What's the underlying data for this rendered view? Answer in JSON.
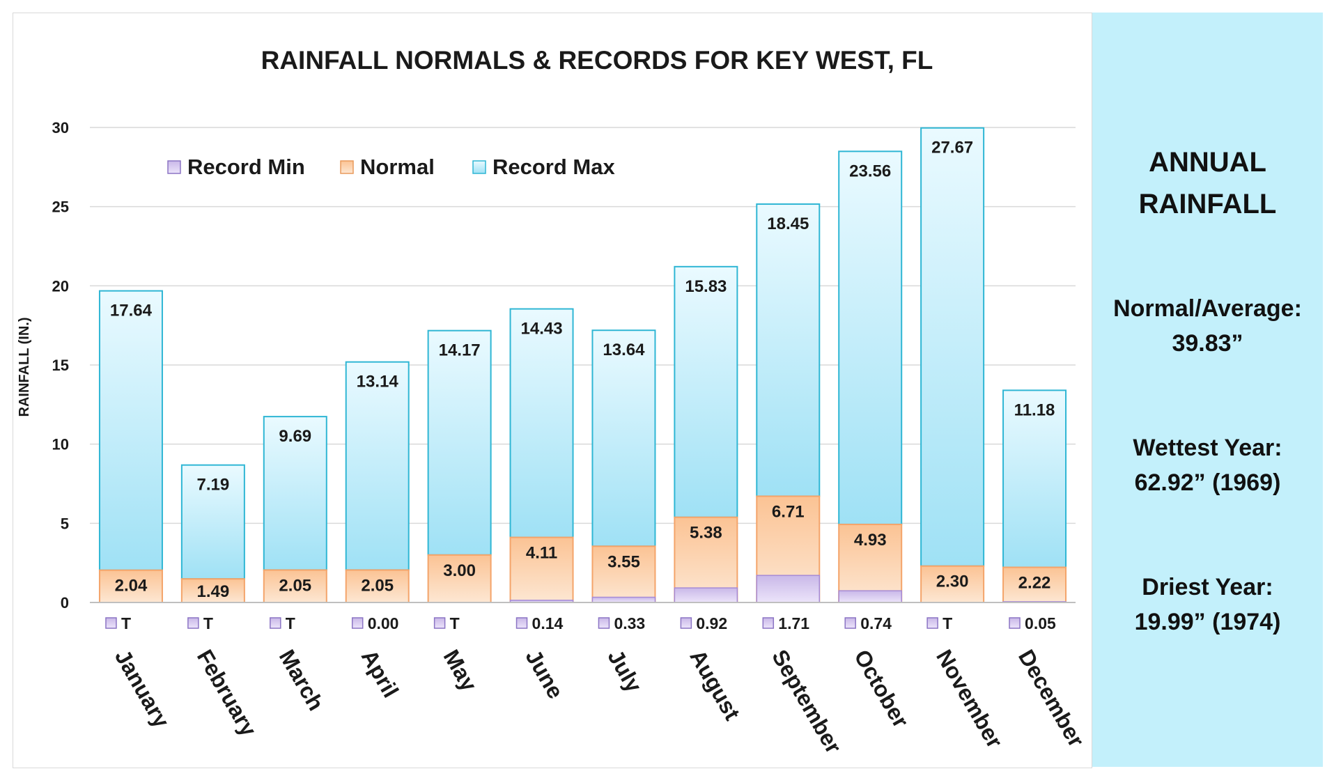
{
  "chart_data": {
    "type": "bar",
    "title": "RAINFALL NORMALS & RECORDS FOR KEY WEST, FL",
    "ylabel": "RAINFALL (IN.)",
    "ylim": [
      0,
      30
    ],
    "yticks": [
      "0",
      "5",
      "10",
      "15",
      "20",
      "25",
      "30"
    ],
    "grid": true,
    "legend_position": "top-left",
    "categories": [
      "January",
      "February",
      "March",
      "April",
      "May",
      "June",
      "July",
      "August",
      "September",
      "October",
      "November",
      "December"
    ],
    "series": [
      {
        "name": "Record Min",
        "color": "#cdbdea",
        "values": [
          0,
          0,
          0,
          0.0,
          0,
          0.14,
          0.33,
          0.92,
          1.71,
          0.74,
          0,
          0.05
        ],
        "labels": [
          "T",
          "T",
          "T",
          "0.00",
          "T",
          "0.14",
          "0.33",
          "0.92",
          "1.71",
          "0.74",
          "T",
          "0.05"
        ]
      },
      {
        "name": "Normal",
        "color": "#fbc89a",
        "values": [
          2.04,
          1.49,
          2.05,
          2.05,
          3.0,
          4.11,
          3.55,
          5.38,
          6.71,
          4.93,
          2.3,
          2.22
        ],
        "labels": [
          "2.04",
          "1.49",
          "2.05",
          "2.05",
          "3.00",
          "4.11",
          "3.55",
          "5.38",
          "6.71",
          "4.93",
          "2.30",
          "2.22"
        ]
      },
      {
        "name": "Record Max",
        "color": "#a6e3f5",
        "values": [
          17.64,
          7.19,
          9.69,
          13.14,
          14.17,
          14.43,
          13.64,
          15.83,
          18.45,
          23.56,
          27.67,
          11.18
        ],
        "labels": [
          "17.64",
          "7.19",
          "9.69",
          "13.14",
          "14.17",
          "14.43",
          "13.64",
          "15.83",
          "18.45",
          "23.56",
          "27.67",
          "11.18"
        ]
      }
    ]
  },
  "annual": {
    "title_line1": "ANNUAL",
    "title_line2": "RAINFALL",
    "normal_label": "Normal/Average:",
    "normal_value": "39.83”",
    "wettest_label": "Wettest Year:",
    "wettest_value": "62.92” (1969)",
    "driest_label": "Driest Year:",
    "driest_value": "19.99” (1974)"
  }
}
